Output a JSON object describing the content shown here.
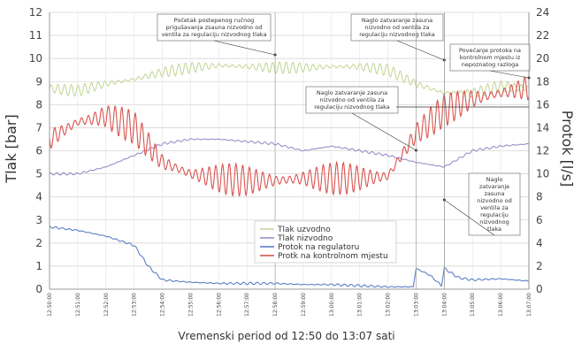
{
  "chart_data": {
    "type": "line",
    "xlabel": "Vremenski period od 12:50 do 13:07 sati",
    "ylabel_left": "Tlak [bar]",
    "ylabel_right": "Protok [l/s]",
    "ylim_left": [
      0,
      12
    ],
    "ylim_right": [
      0,
      24
    ],
    "yticks_left": [
      "0",
      "1",
      "2",
      "3",
      "4",
      "5",
      "6",
      "7",
      "8",
      "9",
      "10",
      "11",
      "12"
    ],
    "yticks_right": [
      "0",
      "2",
      "4",
      "6",
      "8",
      "10",
      "12",
      "14",
      "16",
      "18",
      "20",
      "22",
      "24"
    ],
    "x_ticks": [
      "12:50:00",
      "12:51:00",
      "12:52:00",
      "12:53:00",
      "12:54:00",
      "12:55:00",
      "12:56:00",
      "12:57:00",
      "12:58:00",
      "12:59:00",
      "13:00:00",
      "13:01:00",
      "13:02:00",
      "13:03:00",
      "13:04:00",
      "13:05:00",
      "13:06:00",
      "13:07:00"
    ],
    "grid": true,
    "series": [
      {
        "name": "Tlak uzvodno",
        "axis": "left",
        "color": "#c6d79a",
        "x": [
          0,
          1,
          2,
          3,
          4,
          5,
          6,
          7,
          8,
          9,
          10,
          11,
          12,
          13,
          14,
          15,
          16,
          17
        ],
        "y": [
          8.7,
          8.6,
          8.9,
          9.1,
          9.4,
          9.6,
          9.7,
          9.65,
          9.6,
          9.6,
          9.65,
          9.65,
          9.5,
          8.9,
          8.5,
          8.5,
          8.8,
          8.7
        ],
        "oscillation": 0.25
      },
      {
        "name": "Tlak nizvodno",
        "axis": "left",
        "color": "#9b8fc8",
        "x": [
          0,
          1,
          2,
          3,
          4,
          5,
          6,
          7,
          8,
          9,
          10,
          11,
          12,
          13,
          14,
          15,
          16,
          17
        ],
        "y": [
          5.0,
          5.0,
          5.3,
          5.8,
          6.3,
          6.5,
          6.5,
          6.4,
          6.3,
          6.0,
          6.2,
          6.0,
          5.8,
          5.5,
          5.3,
          6.0,
          6.2,
          6.3
        ],
        "oscillation": 0.05
      },
      {
        "name": "Protok na regulatoru",
        "axis": "right",
        "color": "#5b7fc4",
        "x": [
          0,
          1,
          2,
          3,
          3.5,
          4,
          5,
          6,
          7,
          8,
          9,
          10,
          11,
          12,
          12.9,
          13.0,
          13.5,
          13.9,
          14.0,
          14.5,
          15,
          16,
          17
        ],
        "y": [
          5.4,
          5.1,
          4.6,
          3.8,
          2.0,
          0.8,
          0.6,
          0.5,
          0.5,
          0.5,
          0.4,
          0.4,
          0.3,
          0.2,
          0.2,
          1.8,
          1.2,
          0.3,
          1.8,
          1.0,
          0.8,
          0.9,
          0.7
        ],
        "oscillation": 0.1
      },
      {
        "name": "Protk na kontrolnom mjestu",
        "axis": "right",
        "color": "#d9534f",
        "x": [
          0,
          1,
          2,
          3,
          4,
          5,
          6,
          7,
          8,
          9,
          10,
          11,
          12,
          13,
          14,
          15,
          16,
          17
        ],
        "y": [
          13.0,
          14.5,
          15.0,
          14.0,
          11.0,
          10.0,
          9.6,
          9.4,
          9.4,
          9.6,
          9.6,
          9.6,
          9.8,
          13.5,
          15.5,
          16.5,
          17.0,
          17.5
        ],
        "oscillation": 1.4
      }
    ],
    "annotations": [
      {
        "lines": [
          "Početak postepenog ručnog",
          "prigušavanja zsauna nizvodno od",
          "ventila za regulaciju nizvodnog tlaka"
        ],
        "x": 8.0
      },
      {
        "lines": [
          "Naglo zatvaranje zasuna",
          "nizvodno od ventila za",
          "regulaciju nizvodnog tlaka"
        ],
        "x": 14.0
      },
      {
        "lines": [
          "Povećanje protoka na",
          "kontrolnom mjestu iz",
          "nepoznatog razloga"
        ],
        "x": 17.0
      },
      {
        "lines": [
          "Naglo zatvaranje zasuna",
          "nizvodno od ventila za",
          "regulaciju nizvodnog tlaka"
        ],
        "x": 13.0
      },
      {
        "lines": [
          "Naglo",
          "zatvaranje",
          "zasuna",
          "nizvodno od",
          "ventila za",
          "regulaciju",
          "nizvodnog",
          "tlaka"
        ],
        "x": 14.0
      }
    ]
  }
}
